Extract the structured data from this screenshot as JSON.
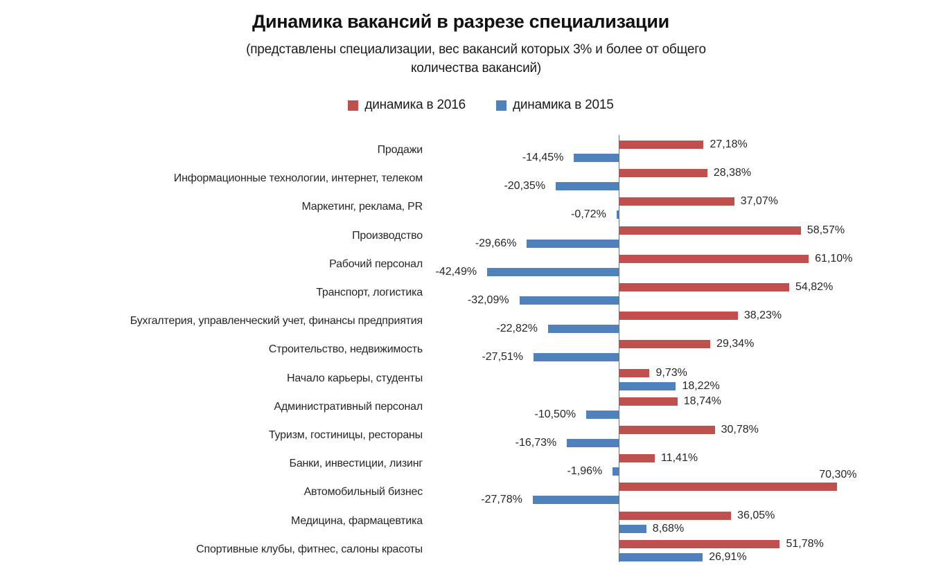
{
  "header": {
    "title": "Динамика вакансий в разрезе специализации",
    "subtitle_lines": [
      "(представлены специализации, вес вакансий которых 3% и более от общего",
      "количества вакансий)"
    ]
  },
  "legend": {
    "series_2016_label": "динамика в 2016",
    "series_2015_label": "динамика в 2015"
  },
  "colors": {
    "series_2016": "#c0504d",
    "series_2015": "#4f81bd",
    "axis": "#6e6e6e",
    "text": "#262626"
  },
  "chart_data": {
    "type": "bar",
    "orientation": "horizontal",
    "title": "Динамика вакансий в разрезе специализации",
    "subtitle": "(представлены специализации, вес вакансий которых 3% и более от общего количества вакансий)",
    "value_format": "percent, comma decimal separator, 2 decimals",
    "legend_position": "top",
    "gridlines": false,
    "zero_baseline": true,
    "xlim": [
      -50,
      100
    ],
    "categories": [
      "Продажи",
      "Информационные технологии, интернет, телеком",
      "Маркетинг, реклама, PR",
      "Производство",
      "Рабочий персонал",
      "Транспорт, логистика",
      "Бухгалтерия, управленческий учет, финансы предприятия",
      "Строительство, недвижимость",
      "Начало карьеры, студенты",
      "Административный персонал",
      "Туризм, гостиницы, рестораны",
      "Банки, инвестиции, лизинг",
      "Автомобильный бизнес",
      "Медицина, фармацевтика",
      "Спортивные клубы, фитнес, салоны красоты"
    ],
    "series": [
      {
        "name": "динамика в 2016",
        "color": "#c0504d",
        "values": [
          27.18,
          28.38,
          37.07,
          58.57,
          61.1,
          54.82,
          38.23,
          29.34,
          9.73,
          18.74,
          30.78,
          11.41,
          70.3,
          36.05,
          51.78
        ]
      },
      {
        "name": "динамика в 2015",
        "color": "#4f81bd",
        "values": [
          -14.45,
          -20.35,
          -0.72,
          -29.66,
          -42.49,
          -32.09,
          -22.82,
          -27.51,
          18.22,
          -10.5,
          -16.73,
          -1.96,
          -27.78,
          8.68,
          26.91
        ]
      }
    ]
  }
}
